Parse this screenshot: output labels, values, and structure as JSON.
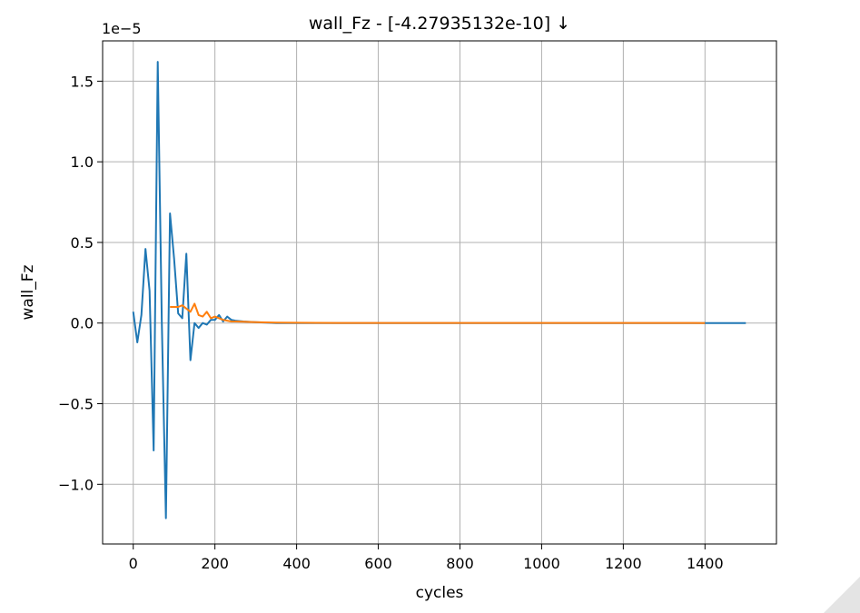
{
  "chart_data": {
    "type": "line",
    "title": "wall_Fz - [-4.27935132e-10]  ↓",
    "xlabel": "cycles",
    "ylabel": "wall_Fz",
    "y_scale_label": "1e−5",
    "y_multiplier": 1e-05,
    "xlim": [
      -75,
      1575
    ],
    "ylim": [
      -1.37,
      1.75
    ],
    "x_ticks": [
      0,
      200,
      400,
      600,
      800,
      1000,
      1200,
      1400
    ],
    "x_tick_labels": [
      "0",
      "200",
      "400",
      "600",
      "800",
      "1000",
      "1200",
      "1400"
    ],
    "y_ticks": [
      -1.0,
      -0.5,
      0.0,
      0.5,
      1.0,
      1.5
    ],
    "y_tick_labels": [
      "−1.0",
      "−0.5",
      "0.0",
      "0.5",
      "1.0",
      "1.5"
    ],
    "grid": true,
    "series": [
      {
        "color": "#1f77b4",
        "x": [
          0,
          10,
          20,
          30,
          40,
          50,
          60,
          70,
          80,
          90,
          100,
          110,
          120,
          130,
          140,
          150,
          160,
          170,
          180,
          190,
          200,
          210,
          220,
          230,
          240,
          250,
          270,
          300,
          350,
          400,
          500,
          600,
          700,
          800,
          900,
          1000,
          1100,
          1200,
          1300,
          1400,
          1500
        ],
        "y": [
          0.07,
          -0.12,
          0.05,
          0.46,
          0.2,
          -0.79,
          1.62,
          0.0,
          -1.21,
          0.68,
          0.4,
          0.06,
          0.03,
          0.43,
          -0.23,
          0.0,
          -0.03,
          0.0,
          -0.01,
          0.02,
          0.02,
          0.05,
          0.01,
          0.04,
          0.02,
          0.015,
          0.01,
          0.005,
          0.0,
          0.0,
          0.0,
          0.0,
          0.0,
          0.0,
          0.0,
          0.0,
          0.0,
          0.0,
          0.0,
          0.0,
          0.0
        ]
      },
      {
        "color": "#ff7f0e",
        "x": [
          90,
          100,
          110,
          120,
          130,
          140,
          150,
          160,
          170,
          180,
          190,
          200,
          210,
          220,
          230,
          240,
          250,
          270,
          300,
          350,
          400,
          500,
          600,
          700,
          800,
          900,
          1000,
          1100,
          1200,
          1300,
          1400
        ],
        "y": [
          0.1,
          0.1,
          0.1,
          0.11,
          0.09,
          0.07,
          0.12,
          0.05,
          0.04,
          0.07,
          0.03,
          0.04,
          0.03,
          0.02,
          0.015,
          0.01,
          0.01,
          0.008,
          0.005,
          0.003,
          0.002,
          0.001,
          0.001,
          0.001,
          0.001,
          0.001,
          0.001,
          0.001,
          0.001,
          0.001,
          0.0
        ]
      }
    ]
  }
}
